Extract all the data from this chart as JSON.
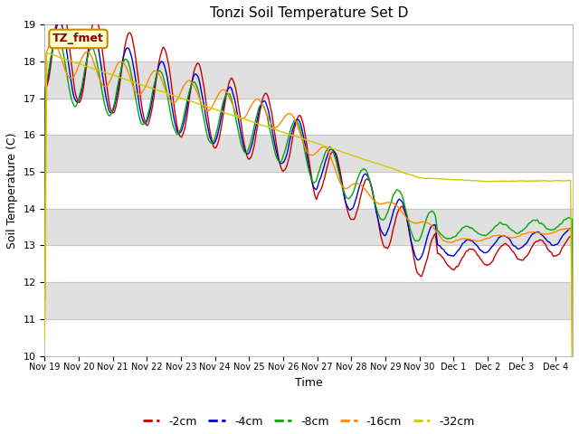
{
  "title": "Tonzi Soil Temperature Set D",
  "xlabel": "Time",
  "ylabel": "Soil Temperature (C)",
  "ylim": [
    10.0,
    19.0
  ],
  "yticks": [
    10.0,
    11.0,
    12.0,
    13.0,
    14.0,
    15.0,
    16.0,
    17.0,
    18.0,
    19.0
  ],
  "xtick_labels": [
    "Nov 19",
    "Nov 20",
    "Nov 21",
    "Nov 22",
    "Nov 23",
    "Nov 24",
    "Nov 25",
    "Nov 26",
    "Nov 27",
    "Nov 28",
    "Nov 29",
    "Nov 30",
    "Dec 1",
    "Dec 2",
    "Dec 3",
    "Dec 4"
  ],
  "colors": {
    "-2cm": "#cc0000",
    "-4cm": "#0000cc",
    "-8cm": "#00aa00",
    "-16cm": "#ff8800",
    "-32cm": "#cccc00"
  },
  "legend_label": "TZ_fmet",
  "legend_box_color": "#ffffcc",
  "legend_box_edge": "#cc8800",
  "background_color": "#ffffff",
  "band_color": "#e0e0e0",
  "n_points": 720,
  "end_day": 15.5
}
